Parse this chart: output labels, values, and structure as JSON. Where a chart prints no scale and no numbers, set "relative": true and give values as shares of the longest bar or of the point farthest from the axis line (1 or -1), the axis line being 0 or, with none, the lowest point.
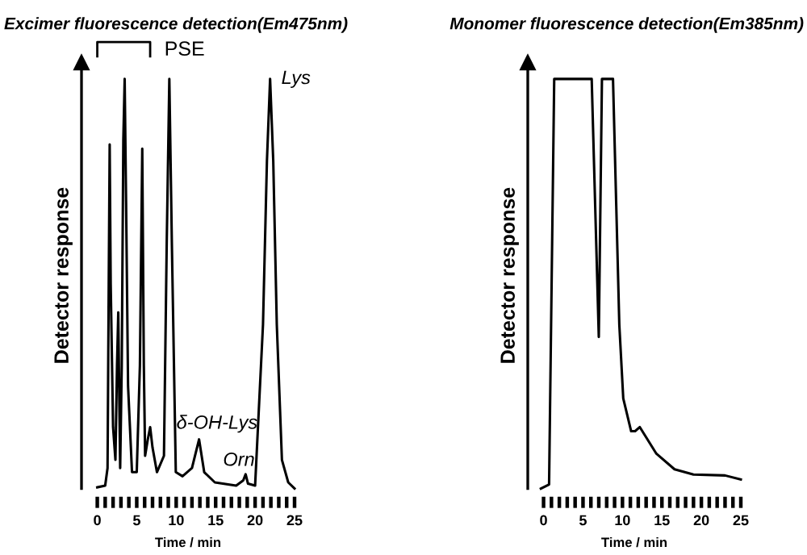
{
  "chart_data": [
    {
      "type": "line",
      "relative": true,
      "title": "Excimer fluorescence detection(Em475nm)",
      "ylabel": "Detector response",
      "xlabel": "Time / min",
      "xlim": [
        -2,
        25
      ],
      "xticks": [
        0,
        {
          "value": 1,
          "label": null
        },
        {
          "value": 2,
          "label": null
        },
        {
          "value": 3,
          "label": null
        },
        {
          "value": 4,
          "label": null
        },
        5,
        {
          "value": 6,
          "label": null
        },
        {
          "value": 7,
          "label": null
        },
        {
          "value": 8,
          "label": null
        },
        {
          "value": 9,
          "label": null
        },
        10,
        {
          "value": 11,
          "label": null
        },
        {
          "value": 12,
          "label": null
        },
        {
          "value": 13,
          "label": null
        },
        {
          "value": 14,
          "label": null
        },
        15,
        {
          "value": 16,
          "label": null
        },
        {
          "value": 17,
          "label": null
        },
        {
          "value": 18,
          "label": null
        },
        {
          "value": 19,
          "label": null
        },
        20,
        {
          "value": 21,
          "label": null
        },
        {
          "value": 22,
          "label": null
        },
        {
          "value": 23,
          "label": null
        },
        {
          "value": 24,
          "label": null
        },
        25
      ],
      "tick_labels": "x",
      "grid": false,
      "legend": false,
      "series": [
        {
          "color": "#000000",
          "x": [
            0,
            1.0,
            1.3,
            1.45,
            1.57,
            1.7,
            2.0,
            2.3,
            2.5,
            2.66,
            2.8,
            2.9,
            3.1,
            3.3,
            3.47,
            3.65,
            3.9,
            4.4,
            5.0,
            5.4,
            5.7,
            5.9,
            6.06,
            6.4,
            6.7,
            7.0,
            7.56,
            8.45,
            8.8,
            9.13,
            9.45,
            9.95,
            10.8,
            12.0,
            12.9,
            13.55,
            14.9,
            17.6,
            18.5,
            18.8,
            19.1,
            20.0,
            21.0,
            21.5,
            21.9,
            22.3,
            22.75,
            23.4,
            24.2,
            25
          ],
          "values": [
            0.003,
            0.007,
            0.05,
            0.5,
            0.84,
            0.5,
            0.15,
            0.07,
            0.3,
            0.43,
            0.2,
            0.05,
            0.3,
            0.85,
            1.0,
            0.7,
            0.25,
            0.04,
            0.04,
            0.3,
            0.83,
            0.3,
            0.08,
            0.12,
            0.15,
            0.1,
            0.04,
            0.08,
            0.6,
            1.0,
            0.6,
            0.04,
            0.03,
            0.05,
            0.12,
            0.04,
            0.015,
            0.007,
            0.02,
            0.035,
            0.012,
            0.007,
            0.4,
            0.8,
            1.0,
            0.8,
            0.4,
            0.07,
            0.015,
            0.0
          ]
        }
      ],
      "annotations": [
        "PSE",
        {
          "text": "Lys",
          "x": 21.9,
          "y": 1.0
        },
        {
          "text": "δ-OH-Lys",
          "x": 12.9,
          "y": 0.12
        },
        {
          "text": "Orn",
          "x": 18.8,
          "y": 0.035
        }
      ]
    },
    {
      "type": "line",
      "relative": true,
      "title": "Monomer fluorescence detection(Em385nm)",
      "ylabel": "Detector response",
      "xlabel": "Time / min",
      "xlim": [
        -2,
        25
      ],
      "xticks": [
        0,
        {
          "value": 1,
          "label": null
        },
        {
          "value": 2,
          "label": null
        },
        {
          "value": 3,
          "label": null
        },
        {
          "value": 4,
          "label": null
        },
        5,
        {
          "value": 6,
          "label": null
        },
        {
          "value": 7,
          "label": null
        },
        {
          "value": 8,
          "label": null
        },
        {
          "value": 9,
          "label": null
        },
        10,
        {
          "value": 11,
          "label": null
        },
        {
          "value": 12,
          "label": null
        },
        {
          "value": 13,
          "label": null
        },
        {
          "value": 14,
          "label": null
        },
        15,
        {
          "value": 16,
          "label": null
        },
        {
          "value": 17,
          "label": null
        },
        {
          "value": 18,
          "label": null
        },
        {
          "value": 19,
          "label": null
        },
        20,
        {
          "value": 21,
          "label": null
        },
        {
          "value": 22,
          "label": null
        },
        {
          "value": 23,
          "label": null
        },
        {
          "value": 24,
          "label": null
        },
        25
      ],
      "tick_labels": "x",
      "grid": false,
      "legend": false,
      "series": [
        {
          "color": "#000000",
          "x": [
            -0.34,
            0.7,
            1.35,
            6.1,
            7.0,
            7.4,
            8.8,
            9.6,
            10.1,
            11.1,
            11.6,
            12.2,
            14.3,
            16.6,
            19.0,
            23.0,
            25.0
          ],
          "values": [
            0.0,
            0.01,
            1.0,
            1.0,
            0.37,
            1.0,
            1.0,
            0.4,
            0.22,
            0.14,
            0.14,
            0.15,
            0.085,
            0.047,
            0.034,
            0.032,
            0.022
          ]
        }
      ]
    }
  ]
}
